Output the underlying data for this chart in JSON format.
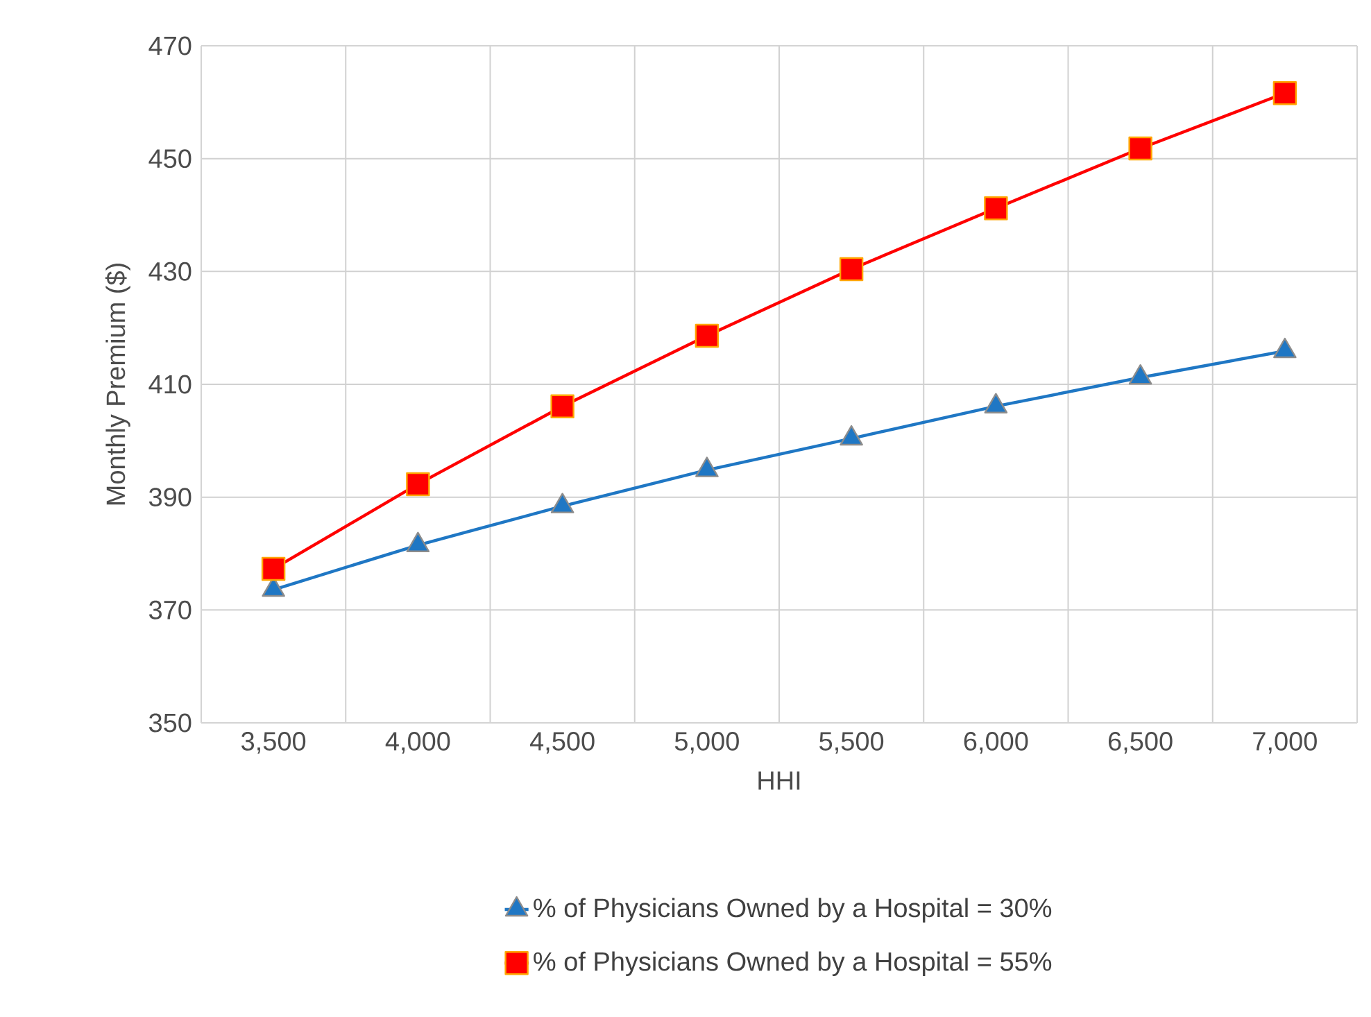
{
  "chart_data": {
    "type": "line",
    "xlabel": "HHI",
    "ylabel": "Monthly Premium ($)",
    "categories": [
      "3,500",
      "4,000",
      "4,500",
      "5,000",
      "5,500",
      "6,000",
      "6,500",
      "7,000"
    ],
    "series": [
      {
        "name": "% of Physicians Owned by a Hospital = 30%",
        "color": "#1f77c4",
        "marker": "triangle",
        "values": [
          373.6,
          381.5,
          388.4,
          394.8,
          400.4,
          406.1,
          411.2,
          415.9
        ]
      },
      {
        "name": "% of Physicians Owned by a Hospital = 55%",
        "color": "#ff0000",
        "marker": "square",
        "values": [
          377.3,
          392.3,
          406.1,
          418.6,
          430.4,
          441.2,
          451.8,
          461.6
        ]
      }
    ],
    "ylim": [
      350,
      470
    ],
    "yticks": [
      350,
      370,
      390,
      410,
      430,
      450,
      470
    ],
    "grid": true,
    "legend": "bottom"
  }
}
